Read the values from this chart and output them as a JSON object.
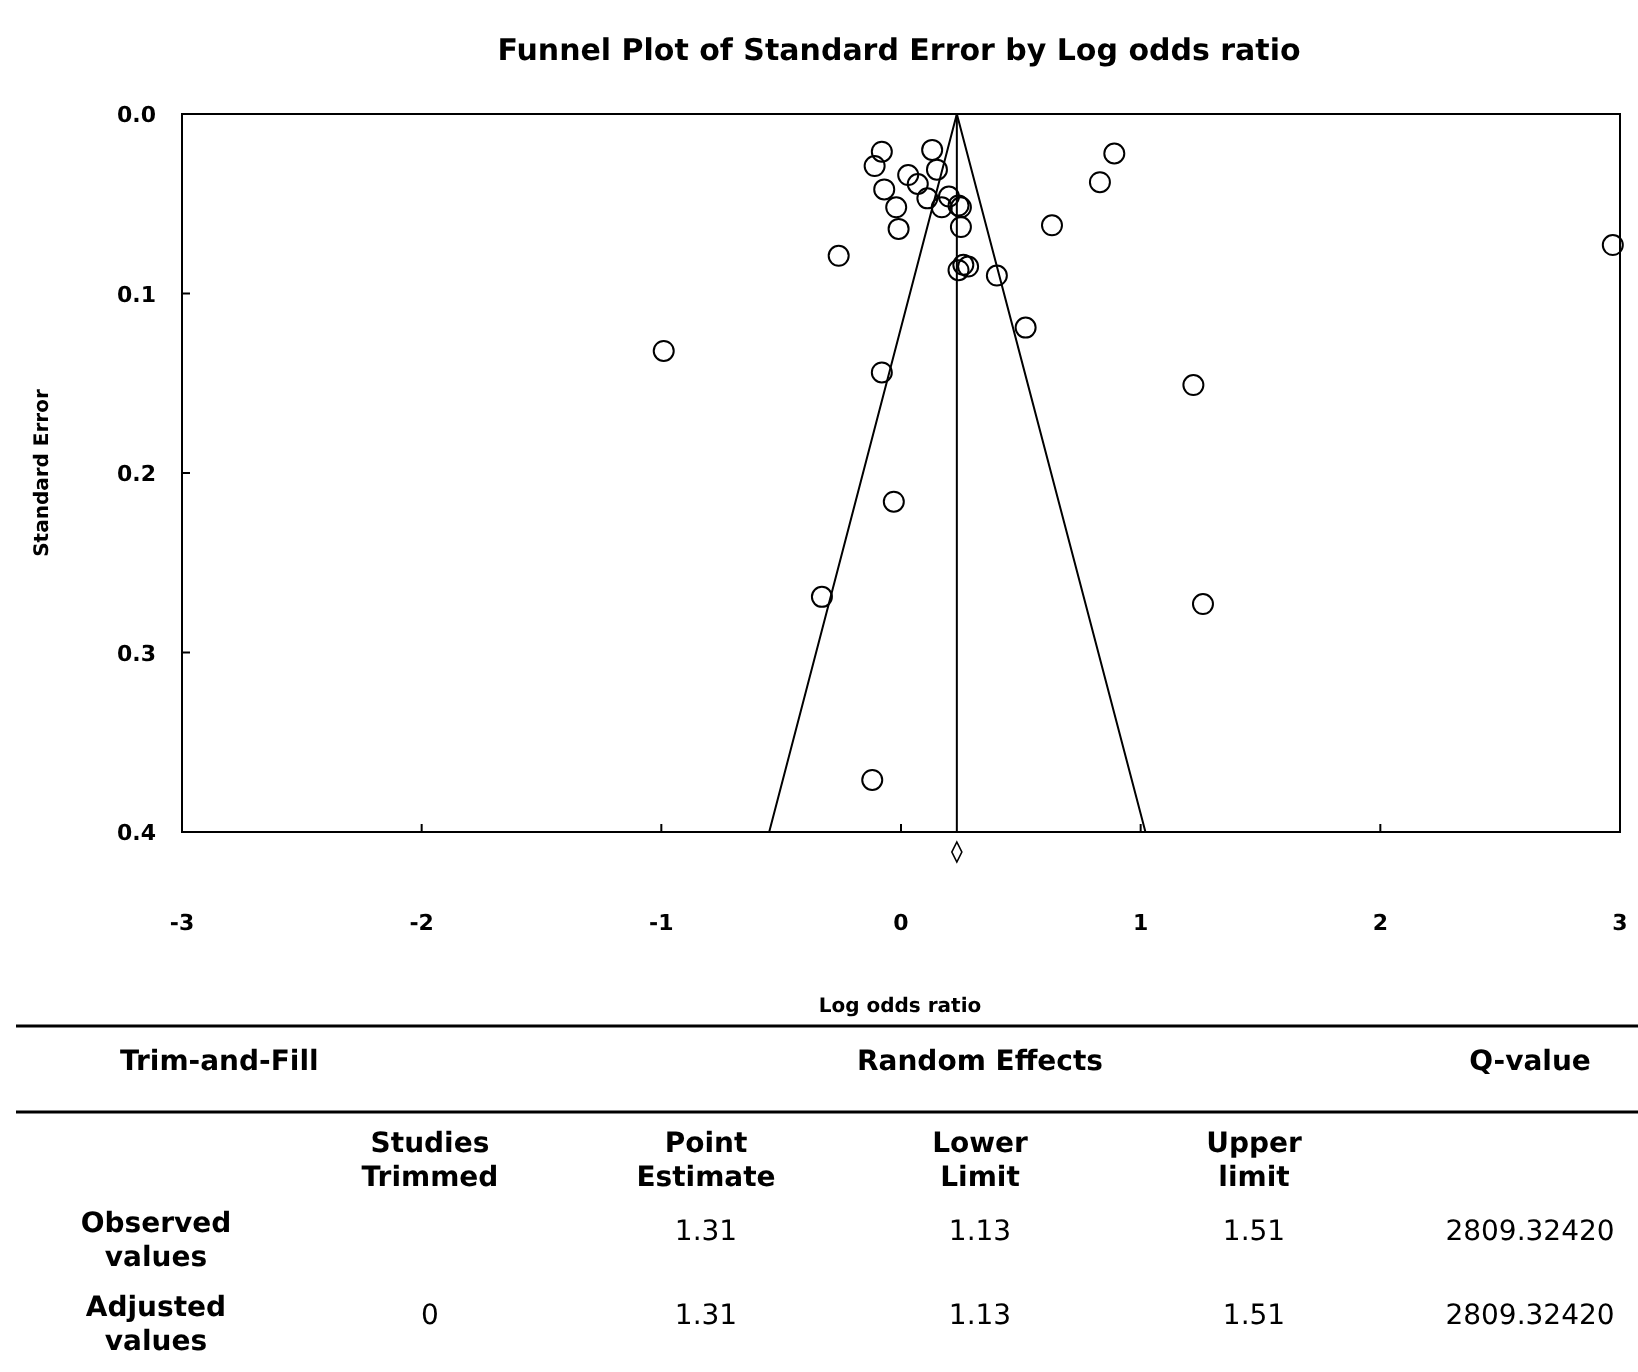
{
  "chart_data": {
    "type": "scatter",
    "title": "Funnel Plot of Standard Error by Log odds ratio",
    "xlabel": "Log odds ratio",
    "ylabel": "Standard Error",
    "xlim": [
      -3,
      3
    ],
    "xticks": [
      -3,
      -2,
      -1,
      0,
      1,
      2,
      3
    ],
    "ylim": [
      0.4,
      0
    ],
    "yticks": [
      {
        "value": 0,
        "label": "0.0"
      },
      0.1,
      0.2,
      0.3,
      0.4
    ],
    "grid": false,
    "marker": "circle",
    "series": [
      {
        "type": "scatter",
        "color": "#000000",
        "x": [
          -0.08,
          0.13,
          -0.11,
          0.89,
          0.03,
          0.07,
          0.15,
          -0.07,
          0.83,
          0.2,
          0.11,
          -0.02,
          0.17,
          0.24,
          0.25,
          0.63,
          -0.01,
          0.25,
          -0.26,
          2.97,
          0.4,
          0.26,
          0.24,
          0.28,
          0.52,
          -0.99,
          -0.08,
          1.22,
          -0.03,
          -0.33,
          1.26,
          -0.12
        ],
        "values": [
          0.021,
          0.02,
          0.029,
          0.022,
          0.034,
          0.039,
          0.031,
          0.042,
          0.038,
          0.046,
          0.047,
          0.052,
          0.052,
          0.051,
          0.052,
          0.062,
          0.064,
          0.063,
          0.079,
          0.073,
          0.09,
          0.084,
          0.087,
          0.085,
          0.119,
          0.132,
          0.144,
          0.151,
          0.216,
          0.269,
          0.273,
          0.371
        ]
      },
      {
        "type": "line",
        "color": "#000000",
        "marker": "none",
        "x": [
          -0.55,
          0.233,
          1.02
        ],
        "values": [
          0.4,
          0,
          0.4
        ]
      }
    ],
    "ref_lines": [
      {
        "axis": "x",
        "value": 0.233,
        "color": "#000000"
      }
    ],
    "annotations": [
      "Trim-and-Fill",
      "Random Effects",
      "Q-value",
      "Studies Trimmed",
      "Point Estimate",
      "Lower Limit",
      "Upper limit",
      "Observed values",
      "1.31",
      "1.13",
      "1.51",
      "2809.32420",
      "Adjusted values",
      "0",
      "1.31",
      "1.13",
      "1.51",
      "2809.32420"
    ]
  }
}
